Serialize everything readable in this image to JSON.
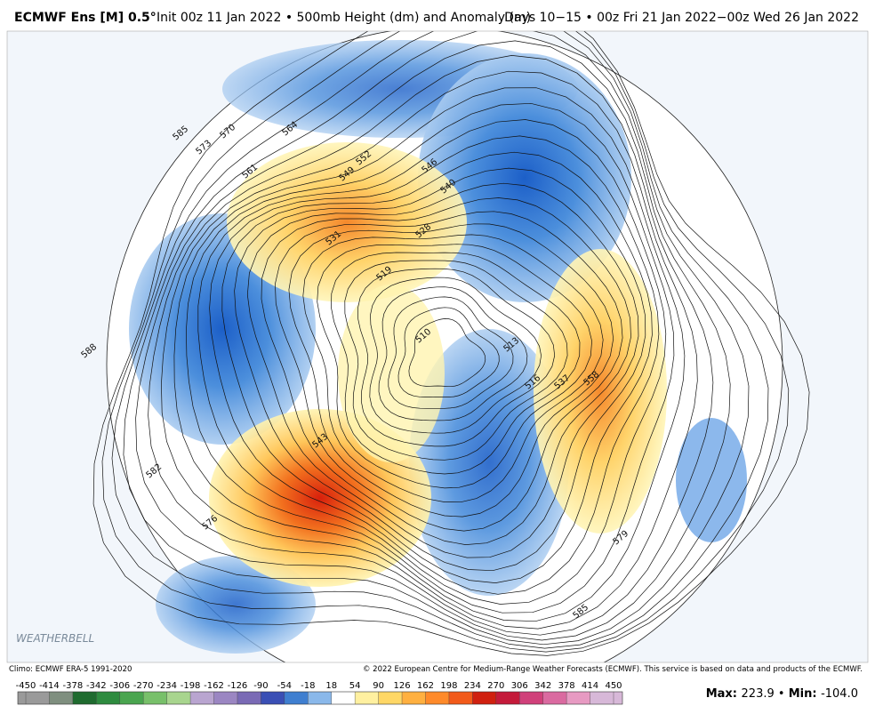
{
  "header": {
    "model": "ECMWF Ens [M] 0.5°",
    "description": "Init 00z 11 Jan 2022 • 500mb Height (dm) and Anomaly (m)",
    "period": "Days 10−15 • 00z Fri 21 Jan 2022−00z Wed 26 Jan 2022"
  },
  "map": {
    "contour_labels": [
      "585",
      "573",
      "570",
      "564",
      "561",
      "549",
      "552",
      "546",
      "540",
      "531",
      "528",
      "519",
      "510",
      "513",
      "516",
      "537",
      "558",
      "543",
      "588",
      "582",
      "576",
      "579",
      "585"
    ],
    "watermark": "WEATHERBELL"
  },
  "footer": {
    "climo": "Climo: ECMWF ERA-5 1991-2020",
    "credit": "© 2022 European Centre for Medium-Range Weather Forecasts (ECMWF). This service is based on data and products of the ECMWF."
  },
  "colorbar": {
    "ticks": [
      -450,
      -414,
      -378,
      -342,
      -306,
      -270,
      -234,
      -198,
      -162,
      -126,
      -90,
      -54,
      -18,
      18,
      54,
      90,
      126,
      162,
      198,
      234,
      270,
      306,
      342,
      378,
      414,
      450
    ],
    "colors": [
      "#9a9a9a",
      "#7f8f7f",
      "#1f6b2f",
      "#2e8b3f",
      "#4aa54f",
      "#78c06a",
      "#a8d58e",
      "#b9a5d0",
      "#9b86c2",
      "#7a6ab5",
      "#3a4fb5",
      "#3f7fd0",
      "#8ab8ea",
      "#ffffff",
      "#fff0a0",
      "#ffd766",
      "#ffb040",
      "#ff8a2a",
      "#f25a1a",
      "#d0200f",
      "#c41a3a",
      "#d0407a",
      "#da6aa0",
      "#e79ac2",
      "#d7b8d8"
    ]
  },
  "stats": {
    "max_label": "Max",
    "max": "223.9",
    "min_label": "Min",
    "min": "-104.0"
  }
}
